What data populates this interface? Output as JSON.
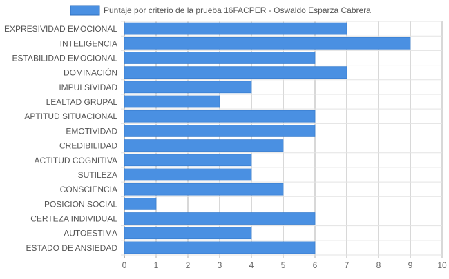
{
  "chart_data": {
    "type": "bar",
    "orientation": "horizontal",
    "categories": [
      "EXPRESIVIDAD EMOCIONAL",
      "INTELIGENCIA",
      "ESTABILIDAD EMOCIONAL",
      "DOMINACIÓN",
      "IMPULSIVIDAD",
      "LEALTAD GRUPAL",
      "APTITUD SITUACIONAL",
      "EMOTIVIDAD",
      "CREDIBILIDAD",
      "ACTITUD COGNITIVA",
      "SUTILEZA",
      "CONSCIENCIA",
      "POSICIÓN SOCIAL",
      "CERTEZA INDIVIDUAL",
      "AUTOESTIMA",
      "ESTADO DE ANSIEDAD"
    ],
    "series": [
      {
        "name": "Puntaje por criterio de la prueba 16FACPER - Oswaldo Esparza Cabrera",
        "values": [
          7,
          9,
          6,
          7,
          4,
          3,
          6,
          6,
          5,
          4,
          4,
          5,
          1,
          6,
          4,
          6
        ],
        "color": "#4a90e2"
      }
    ],
    "xlim": [
      0,
      10
    ],
    "x_ticks": [
      "0",
      "1",
      "2",
      "3",
      "4",
      "5",
      "6",
      "7",
      "8",
      "9",
      "10"
    ],
    "grid": true,
    "legend_position": "top"
  }
}
